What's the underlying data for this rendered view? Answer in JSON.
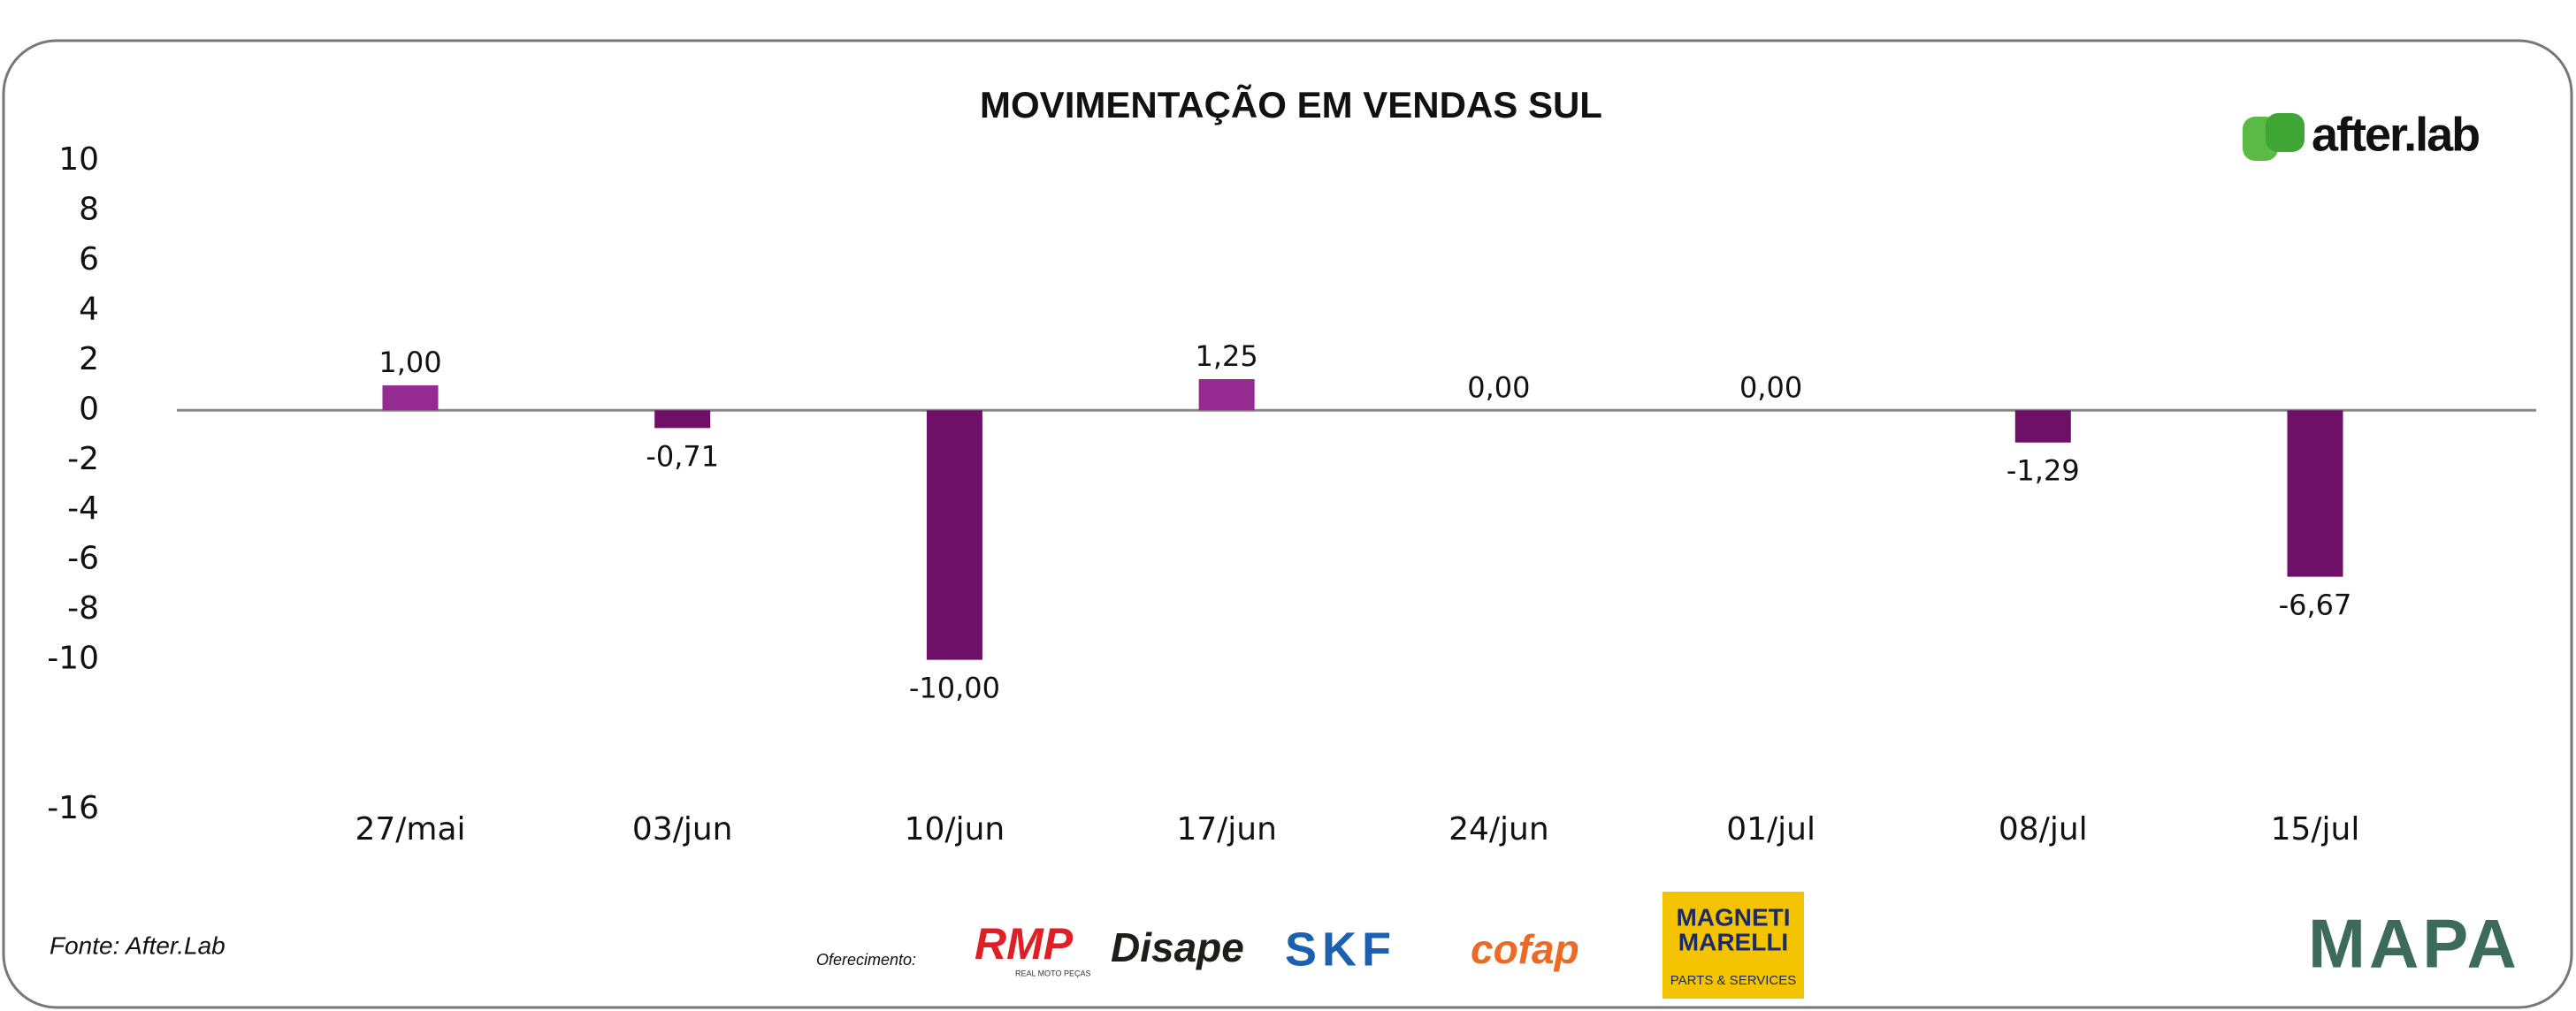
{
  "chart_data": {
    "type": "bar",
    "title": "MOVIMENTAÇÃO EM VENDAS SUL",
    "categories": [
      "27/mai",
      "03/jun",
      "10/jun",
      "17/jun",
      "24/jun",
      "01/jul",
      "08/jul",
      "15/jul"
    ],
    "values": [
      1.0,
      -0.71,
      -10.0,
      1.25,
      0.0,
      0.0,
      -1.29,
      -6.67
    ],
    "value_labels": [
      "1,00",
      "-0,71",
      "-10,00",
      "1,25",
      "0,00",
      "0,00",
      "-1,29",
      "-6,67"
    ],
    "colors": [
      "#952a91",
      "#6e0f68",
      "#6e0f68",
      "#952a91",
      "#952a91",
      "#952a91",
      "#6e0f68",
      "#6e0f68"
    ],
    "ylim": [
      -16,
      10
    ],
    "yticks": [
      10,
      8,
      6,
      4,
      2,
      0,
      -2,
      -4,
      -6,
      -8,
      -10,
      -16
    ],
    "grid": false
  },
  "footer": {
    "source": "Fonte: After.Lab",
    "sponsor_label": "Oferecimento:",
    "sponsors": [
      "RMP",
      "REAL MOTO PEÇAS",
      "Disape",
      "SKF",
      "cofap",
      "MAGNETI",
      "MARELLI",
      "PARTS & SERVICES"
    ],
    "logo": "after.lab",
    "mapa": "MAPA"
  }
}
